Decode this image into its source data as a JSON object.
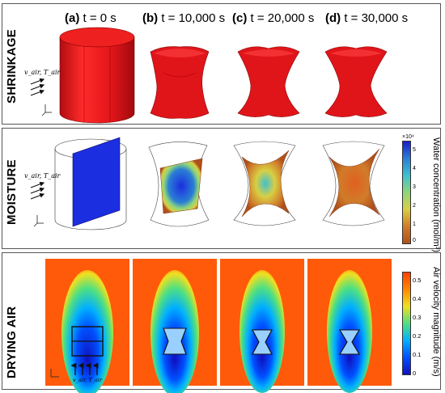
{
  "rows": {
    "shrinkage": "SHRINKAGE",
    "moisture": "MOISTURE",
    "drying_air": "DRYING AIR"
  },
  "stages": [
    {
      "tag": "(a)",
      "label": "t = 0 s"
    },
    {
      "tag": "(b)",
      "label": "t = 10,000 s"
    },
    {
      "tag": "(c)",
      "label": "t = 20,000 s"
    },
    {
      "tag": "(d)",
      "label": "t = 30,000 s"
    }
  ],
  "flow_label": "v_air, T_air",
  "axes": {
    "x": "x",
    "y": "y",
    "z": "z"
  },
  "moisture_colorbar": {
    "title": "Water concentration (mol/m³)",
    "exponent": "×10⁴",
    "ticks": [
      "5",
      "4",
      "3",
      "2",
      "1",
      "0"
    ],
    "colors": [
      "#1c1ccc",
      "#2a7fd4",
      "#40c0d0",
      "#8fd67a",
      "#d8cf44",
      "#d07c2a",
      "#b0501a"
    ]
  },
  "air_colorbar": {
    "title": "Air velocity magnitude (m/s)",
    "ticks": [
      "0.5",
      "0.4",
      "0.3",
      "0.2",
      "0.1",
      "0"
    ],
    "colors": [
      "#ff4000",
      "#ff8800",
      "#f0e020",
      "#50e080",
      "#00b0ff",
      "#0050ff",
      "#1010c0"
    ]
  },
  "colors": {
    "shape_red": "#e0151a",
    "slab_blue": "#1b2ee0",
    "air_bg": "#ff5a0a"
  }
}
